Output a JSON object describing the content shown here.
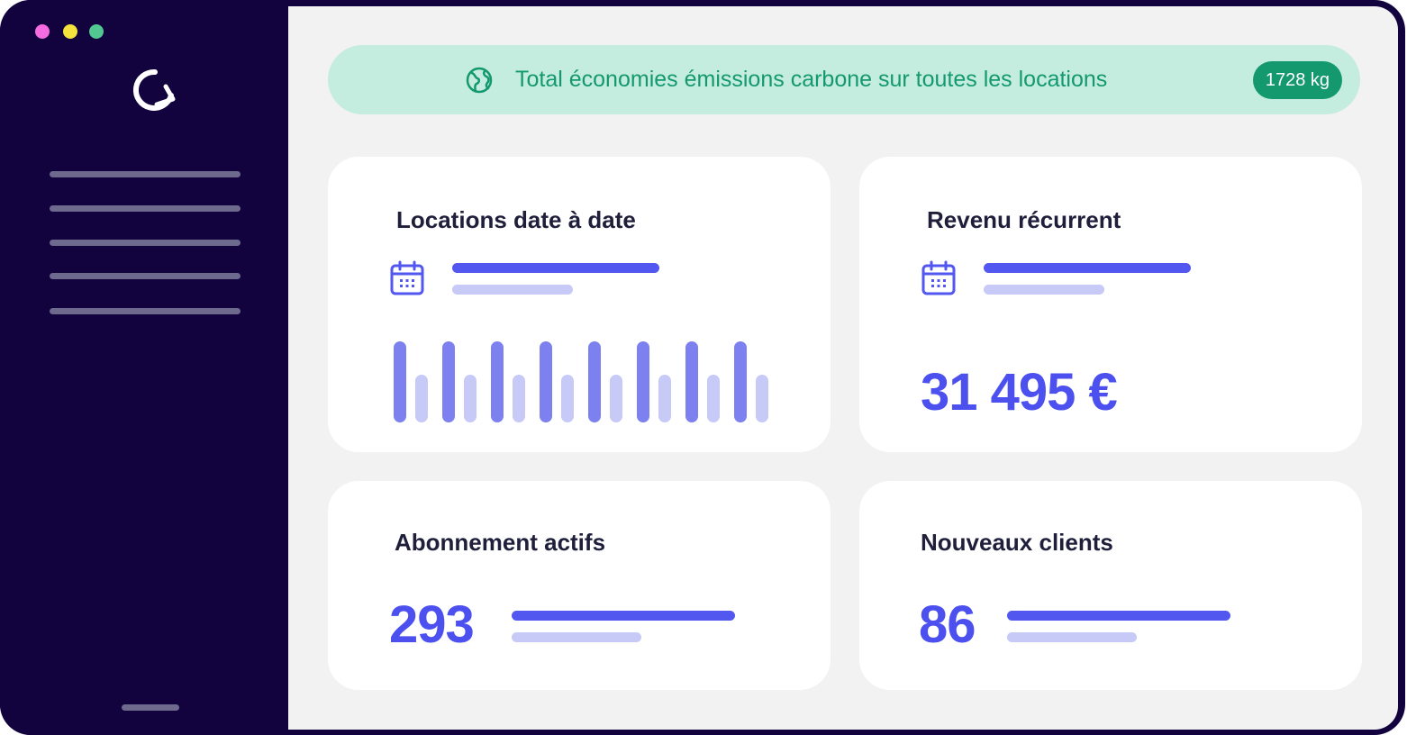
{
  "window": {
    "dots": [
      "#f56ce0",
      "#f5e23c",
      "#52c792"
    ]
  },
  "sidebar": {
    "logo_icon": "refresh-logo-icon",
    "nav_items": 5
  },
  "banner": {
    "icon": "globe-icon",
    "text": "Total économies émissions carbone sur toutes les locations",
    "badge": "1728 kg"
  },
  "cards": {
    "rentals": {
      "title": "Locations date à date",
      "icon": "calendar-icon"
    },
    "revenue": {
      "title": "Revenu récurrent",
      "icon": "calendar-icon",
      "value": "31 495 €"
    },
    "subscriptions": {
      "title": "Abonnement actifs",
      "value": "293"
    },
    "new_clients": {
      "title": "Nouveaux clients",
      "value": "86"
    }
  },
  "colors": {
    "sidebar": "#12033f",
    "accent": "#4c50ee",
    "accent_soft": "#c7c9f7",
    "green": "#14996e",
    "green_soft": "#c4ecdf"
  }
}
